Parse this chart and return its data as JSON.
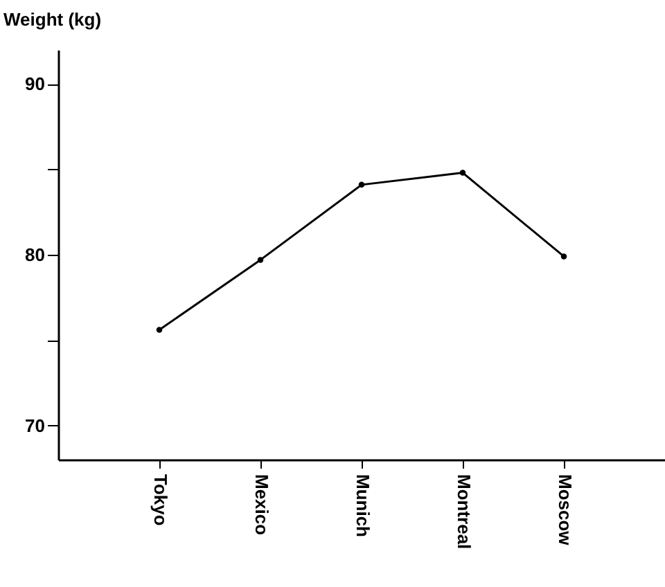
{
  "chart_data": {
    "type": "line",
    "ylabel": "Weight (kg)",
    "categories": [
      "Tokyo",
      "Mexico",
      "Munich",
      "Montreal",
      "Moscow"
    ],
    "series": [
      {
        "color": "#000000",
        "values": [
          75.6,
          79.7,
          84.1,
          84.8,
          79.9
        ]
      }
    ],
    "ylim": [
      68,
      92
    ],
    "yticks": [
      70,
      {
        "value": 75,
        "label": null
      },
      80,
      {
        "value": 85,
        "label": null
      },
      90
    ],
    "marker": "circle",
    "line_style": "solid"
  }
}
